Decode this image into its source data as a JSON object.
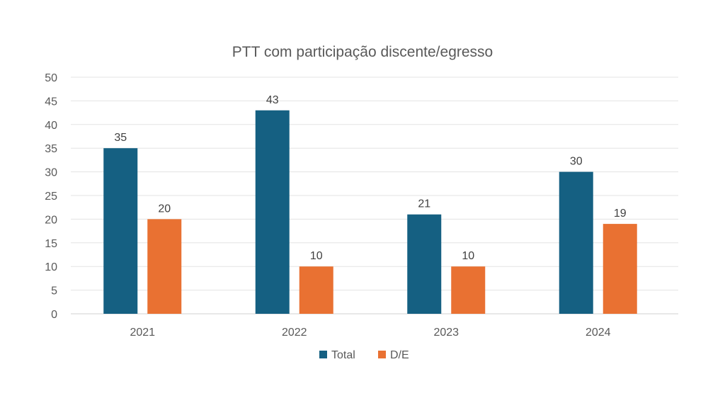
{
  "chart_data": {
    "type": "bar",
    "title": "PTT com participação discente/egresso",
    "xlabel": "",
    "ylabel": "",
    "categories": [
      "2021",
      "2022",
      "2023",
      "2024"
    ],
    "series": [
      {
        "name": "Total",
        "color": "#156082",
        "values": [
          35,
          43,
          21,
          30
        ]
      },
      {
        "name": "D/E",
        "color": "#E97132",
        "values": [
          20,
          10,
          10,
          19
        ]
      }
    ],
    "ylim": [
      0,
      50
    ],
    "yticks": [
      0,
      5,
      10,
      15,
      20,
      25,
      30,
      35,
      40,
      45,
      50
    ],
    "grid": true,
    "data_labels": true,
    "legend_position": "bottom"
  }
}
